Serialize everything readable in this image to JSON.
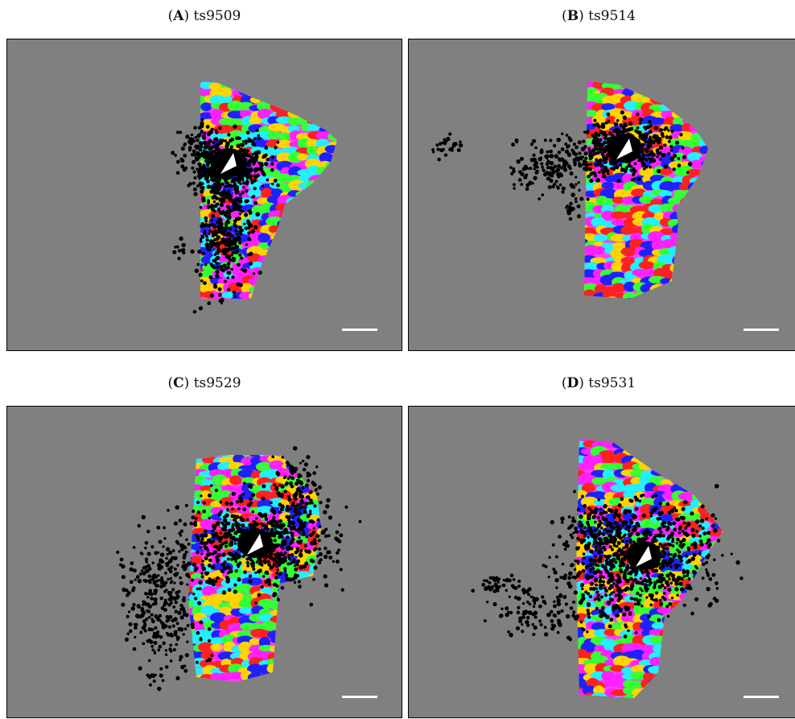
{
  "colors": {
    "background_gray": "#808080",
    "dot_color": "#000000",
    "scalebar_color": "#ffffff",
    "map_palette": [
      "#ff2020",
      "#ffd400",
      "#35ff35",
      "#20f0ff",
      "#2020ff",
      "#ff20ff"
    ]
  },
  "panels": [
    {
      "id": "A",
      "label": "A",
      "name": "ts9509"
    },
    {
      "id": "B",
      "label": "B",
      "name": "ts9514"
    },
    {
      "id": "C",
      "label": "C",
      "name": "ts9529"
    },
    {
      "id": "D",
      "label": "D",
      "name": "ts9531"
    }
  ]
}
